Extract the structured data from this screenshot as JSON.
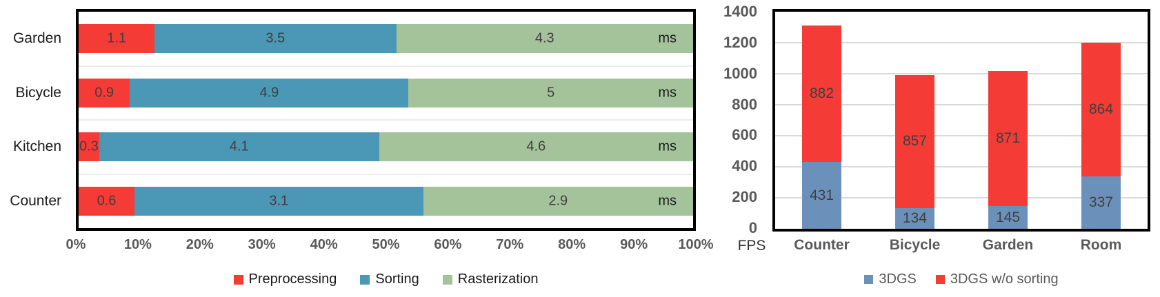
{
  "chart_data": [
    {
      "type": "bar",
      "orientation": "horizontal",
      "stacked": "100%",
      "title": "",
      "unit_suffix": "ms",
      "categories": [
        "Garden",
        "Bicycle",
        "Kitchen",
        "Counter"
      ],
      "series": [
        {
          "name": "Preprocessing",
          "color": "#F53B35",
          "values": [
            1.1,
            0.9,
            0.3,
            0.6
          ]
        },
        {
          "name": "Sorting",
          "color": "#4B97B6",
          "values": [
            3.5,
            4.9,
            4.1,
            3.1
          ]
        },
        {
          "name": "Rasterization",
          "color": "#A4C39B",
          "values": [
            4.3,
            5,
            4.6,
            2.9
          ]
        }
      ],
      "x_ticks": [
        "0%",
        "10%",
        "20%",
        "30%",
        "40%",
        "50%",
        "60%",
        "70%",
        "80%",
        "90%",
        "100%"
      ],
      "xlim": [
        0,
        100
      ],
      "legend_position": "bottom",
      "grid": "category-separators"
    },
    {
      "type": "bar",
      "orientation": "vertical",
      "stacked": true,
      "title": "",
      "axis_label": "FPS",
      "categories": [
        "Counter",
        "Bicycle",
        "Garden",
        "Room"
      ],
      "series": [
        {
          "name": "3DGS",
          "color": "#6B91BB",
          "values": [
            431,
            134,
            145,
            337
          ]
        },
        {
          "name": "3DGS w/o sorting",
          "color": "#F53B35",
          "values": [
            882,
            857,
            871,
            864
          ]
        }
      ],
      "y_ticks": [
        0,
        200,
        400,
        600,
        800,
        1000,
        1200,
        1400
      ],
      "ylim": [
        0,
        1400
      ],
      "legend_position": "bottom",
      "grid": "horizontal"
    }
  ],
  "colors": {
    "axis_tick_text": "#595959",
    "value_label_text": "#3F3F3F",
    "category_text_left": "#1A1A1A",
    "legend_text_left": "#1A1A1A",
    "legend_text_right": "#595959",
    "gridline_left": "#ECECEC",
    "gridline_right": "#D9D9D9",
    "plot_border": "#000000",
    "background": "#FFFFFF"
  }
}
